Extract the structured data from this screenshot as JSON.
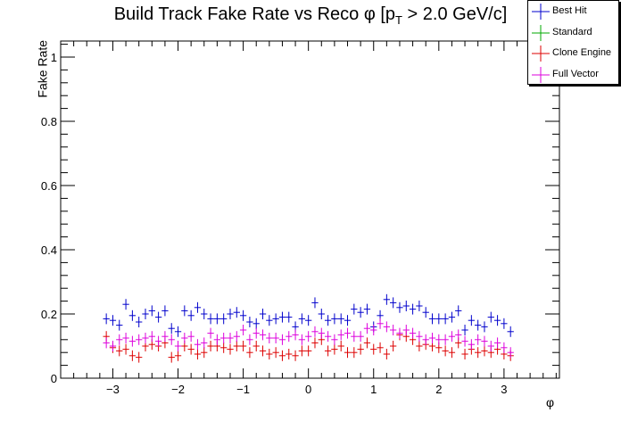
{
  "chart_data": {
    "type": "scatter",
    "title_main": "Build Track Fake Rate vs Reco φ [p",
    "title_sub": "T",
    "title_tail": " > 2.0 GeV/c]",
    "xlabel": "φ",
    "ylabel": "Fake Rate",
    "xlim": [
      -3.8,
      3.85
    ],
    "ylim": [
      0,
      1.05
    ],
    "x_ticks": [
      -3,
      -2,
      -1,
      0,
      1,
      2,
      3
    ],
    "x_tick_labels": [
      "−3",
      "−2",
      "−1",
      "0",
      "1",
      "2",
      "3"
    ],
    "y_ticks": [
      0,
      0.2,
      0.4,
      0.6,
      0.8,
      1
    ],
    "y_tick_labels": [
      "0",
      "0.2",
      "0.4",
      "0.6",
      "0.8",
      "1"
    ],
    "grid": false,
    "legend_position": "top-right",
    "x": [
      -3.1,
      -3.0,
      -2.9,
      -2.8,
      -2.7,
      -2.6,
      -2.5,
      -2.4,
      -2.3,
      -2.2,
      -2.1,
      -2.0,
      -1.9,
      -1.8,
      -1.7,
      -1.6,
      -1.5,
      -1.4,
      -1.3,
      -1.2,
      -1.1,
      -1.0,
      -0.9,
      -0.8,
      -0.7,
      -0.6,
      -0.5,
      -0.4,
      -0.3,
      -0.2,
      -0.1,
      0.0,
      0.1,
      0.2,
      0.3,
      0.4,
      0.5,
      0.6,
      0.7,
      0.8,
      0.9,
      1.0,
      1.1,
      1.2,
      1.3,
      1.4,
      1.5,
      1.6,
      1.7,
      1.8,
      1.9,
      2.0,
      2.1,
      2.2,
      2.3,
      2.4,
      2.5,
      2.6,
      2.7,
      2.8,
      2.9,
      3.0,
      3.1
    ],
    "series": [
      {
        "name": "Best Hit",
        "color": "#0000cc",
        "values": [
          0.185,
          0.18,
          0.165,
          0.23,
          0.195,
          0.175,
          0.2,
          0.21,
          0.19,
          0.21,
          0.155,
          0.145,
          0.21,
          0.195,
          0.22,
          0.2,
          0.185,
          0.185,
          0.185,
          0.2,
          0.205,
          0.195,
          0.175,
          0.17,
          0.2,
          0.18,
          0.185,
          0.19,
          0.19,
          0.16,
          0.185,
          0.18,
          0.235,
          0.2,
          0.18,
          0.185,
          0.185,
          0.18,
          0.215,
          0.205,
          0.215,
          0.16,
          0.195,
          0.245,
          0.235,
          0.22,
          0.225,
          0.215,
          0.225,
          0.205,
          0.185,
          0.185,
          0.185,
          0.19,
          0.21,
          0.15,
          0.18,
          0.165,
          0.16,
          0.19,
          0.18,
          0.17,
          0.145
        ]
      },
      {
        "name": "Standard",
        "color": "#00aa00",
        "values": []
      },
      {
        "name": "Clone Engine",
        "color": "#dd0000",
        "values": [
          0.13,
          0.095,
          0.085,
          0.09,
          0.07,
          0.065,
          0.1,
          0.105,
          0.1,
          0.11,
          0.065,
          0.07,
          0.1,
          0.09,
          0.075,
          0.08,
          0.1,
          0.1,
          0.095,
          0.09,
          0.1,
          0.1,
          0.08,
          0.1,
          0.085,
          0.075,
          0.08,
          0.07,
          0.075,
          0.07,
          0.085,
          0.085,
          0.11,
          0.12,
          0.085,
          0.09,
          0.1,
          0.08,
          0.08,
          0.09,
          0.11,
          0.09,
          0.095,
          0.075,
          0.1,
          0.135,
          0.13,
          0.12,
          0.1,
          0.105,
          0.1,
          0.095,
          0.085,
          0.08,
          0.11,
          0.075,
          0.09,
          0.08,
          0.085,
          0.08,
          0.09,
          0.075,
          0.07
        ]
      },
      {
        "name": "Full Vector",
        "color": "#dd00dd",
        "values": [
          0.11,
          0.1,
          0.12,
          0.125,
          0.115,
          0.12,
          0.125,
          0.13,
          0.115,
          0.13,
          0.12,
          0.1,
          0.125,
          0.13,
          0.105,
          0.11,
          0.14,
          0.12,
          0.125,
          0.125,
          0.13,
          0.15,
          0.12,
          0.14,
          0.135,
          0.125,
          0.125,
          0.12,
          0.13,
          0.135,
          0.12,
          0.13,
          0.145,
          0.14,
          0.13,
          0.12,
          0.135,
          0.14,
          0.13,
          0.13,
          0.155,
          0.15,
          0.17,
          0.16,
          0.15,
          0.14,
          0.15,
          0.14,
          0.13,
          0.12,
          0.125,
          0.12,
          0.12,
          0.13,
          0.135,
          0.115,
          0.105,
          0.12,
          0.115,
          0.1,
          0.11,
          0.095,
          0.08
        ]
      }
    ]
  }
}
